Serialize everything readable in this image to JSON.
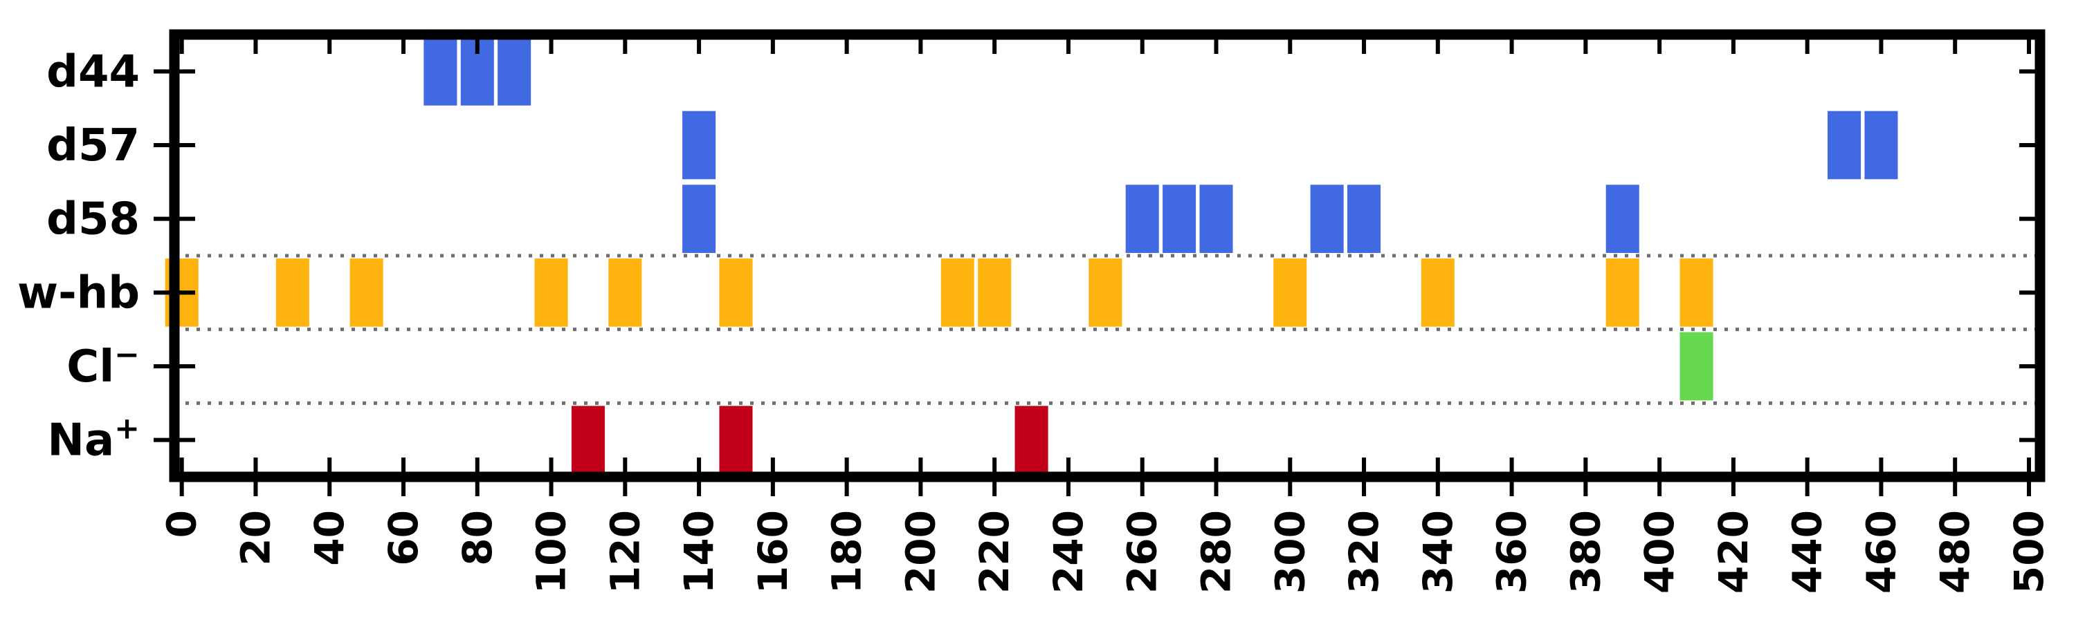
{
  "chart_data": {
    "type": "event raster",
    "title": "",
    "xlabel": "",
    "ylabel": "",
    "xlim": [
      -2,
      503
    ],
    "x_ticks": [
      0,
      20,
      40,
      60,
      80,
      100,
      120,
      140,
      160,
      180,
      200,
      220,
      240,
      260,
      280,
      300,
      320,
      340,
      360,
      380,
      400,
      420,
      440,
      460,
      480,
      500
    ],
    "grid": "dotted separators between d58/w-hb, w-hb/Cl, Cl/Na rows",
    "rows": [
      {
        "label": "d44",
        "color": "#4169E1",
        "events": [
          70,
          80,
          90
        ]
      },
      {
        "label": "d57",
        "color": "#4169E1",
        "events": [
          140,
          450,
          460
        ]
      },
      {
        "label": "d58",
        "color": "#4169E1",
        "events": [
          140,
          260,
          270,
          280,
          310,
          320,
          390
        ]
      },
      {
        "label": "w-hb",
        "color": "#FFB30F",
        "events": [
          0,
          30,
          50,
          100,
          120,
          150,
          210,
          220,
          250,
          300,
          340,
          390,
          410
        ]
      },
      {
        "label": "Cl",
        "label_sup": "−",
        "color": "#66D94F",
        "events": [
          410
        ]
      },
      {
        "label": "Na",
        "label_sup": "+",
        "color": "#C2001A",
        "events": [
          110,
          150,
          230
        ]
      }
    ]
  }
}
